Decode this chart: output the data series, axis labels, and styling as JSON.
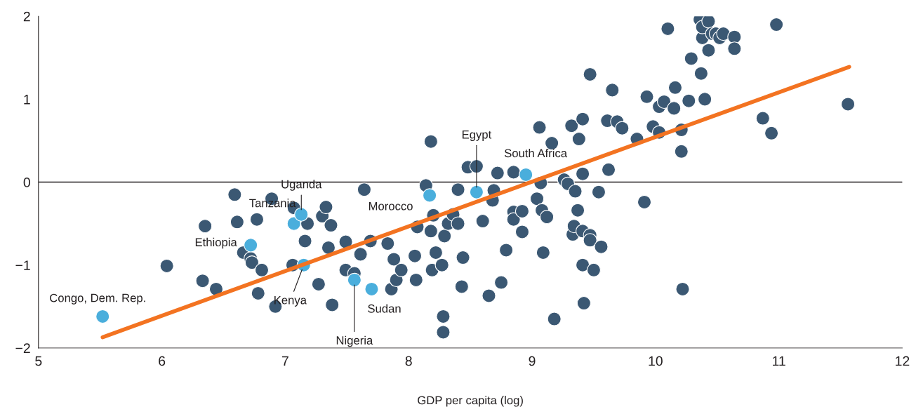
{
  "chart_data": {
    "type": "scatter",
    "xlabel": "GDP per capita (log)",
    "xlim": [
      5,
      12
    ],
    "xticks": [
      5,
      6,
      7,
      8,
      9,
      10,
      11,
      12
    ],
    "ylim": [
      -2,
      2
    ],
    "yticks": [
      {
        "value": -2,
        "label": "−2"
      },
      {
        "value": -1,
        "label": "−1"
      },
      0,
      1,
      2
    ],
    "grid": false,
    "marker": "circle",
    "ref_lines": [
      {
        "axis": "y",
        "value": 0,
        "color": "#231f20"
      }
    ],
    "series": [
      {
        "color": "#3b5873",
        "x": [
          6.04,
          6.33,
          6.35,
          6.44,
          6.59,
          6.61,
          6.66,
          6.72,
          6.73,
          6.77,
          6.78,
          6.81,
          6.89,
          6.92,
          7.06,
          7.07,
          7.16,
          7.18,
          7.27,
          7.3,
          7.33,
          7.35,
          7.37,
          7.38,
          7.49,
          7.49,
          7.56,
          7.61,
          7.64,
          7.69,
          7.83,
          7.86,
          7.88,
          7.9,
          7.94,
          8.05,
          8.06,
          8.07,
          8.14,
          8.18,
          8.18,
          8.19,
          8.2,
          8.22,
          8.27,
          8.28,
          8.28,
          8.29,
          8.32,
          8.36,
          8.4,
          8.4,
          8.43,
          8.44,
          8.48,
          8.55,
          8.6,
          8.65,
          8.68,
          8.69,
          8.72,
          8.75,
          8.79,
          8.85,
          8.85,
          8.85,
          8.92,
          8.92,
          9.04,
          9.06,
          9.07,
          9.08,
          9.09,
          9.12,
          9.16,
          9.18,
          9.26,
          9.29,
          9.32,
          9.33,
          9.34,
          9.35,
          9.37,
          9.38,
          9.41,
          9.41,
          9.41,
          9.41,
          9.42,
          9.47,
          9.47,
          9.47,
          9.5,
          9.54,
          9.56,
          9.61,
          9.62,
          9.65,
          9.69,
          9.73,
          9.85,
          9.91,
          9.93,
          9.98,
          10.03,
          10.03,
          10.07,
          10.1,
          10.15,
          10.16,
          10.21,
          10.21,
          10.22,
          10.27,
          10.29,
          10.36,
          10.37,
          10.38,
          10.38,
          10.4,
          10.43,
          10.43,
          10.46,
          10.49,
          10.52,
          10.55,
          10.64,
          10.64,
          10.87,
          10.94,
          10.98,
          11.56
        ],
        "values": [
          -1.01,
          -1.19,
          -0.53,
          -1.29,
          -0.15,
          -0.48,
          -0.85,
          -0.92,
          -0.97,
          -0.45,
          -1.34,
          -1.06,
          -0.2,
          -1.5,
          -1.0,
          -0.31,
          -0.71,
          -0.5,
          -1.23,
          -0.41,
          -0.3,
          -0.79,
          -0.52,
          -1.48,
          -0.72,
          -1.06,
          -1.1,
          -0.87,
          -0.09,
          -0.71,
          -0.74,
          -1.29,
          -0.93,
          -1.18,
          -1.06,
          -0.89,
          -1.18,
          -0.54,
          -0.04,
          -0.59,
          0.49,
          -1.06,
          -0.4,
          -0.85,
          -1.0,
          -1.62,
          -1.81,
          -0.65,
          -0.5,
          -0.39,
          -0.5,
          -0.09,
          -1.26,
          -0.91,
          0.18,
          0.19,
          -0.47,
          -1.37,
          -0.22,
          -0.1,
          0.11,
          -1.21,
          -0.82,
          -0.36,
          -0.45,
          0.12,
          -0.35,
          -0.6,
          -0.2,
          0.66,
          -0.01,
          -0.34,
          -0.85,
          -0.42,
          0.47,
          -1.65,
          0.03,
          -0.02,
          0.68,
          -0.63,
          -0.53,
          -0.11,
          -0.34,
          0.52,
          0.76,
          0.1,
          -0.59,
          -1.0,
          -1.46,
          1.3,
          -0.64,
          -0.7,
          -1.06,
          -0.12,
          -0.78,
          0.74,
          0.15,
          1.11,
          0.73,
          0.65,
          0.52,
          -0.24,
          1.03,
          0.67,
          0.91,
          0.6,
          0.97,
          1.85,
          0.89,
          1.14,
          0.63,
          0.37,
          -1.29,
          0.98,
          1.49,
          1.96,
          1.31,
          1.74,
          1.87,
          1.0,
          1.94,
          1.59,
          1.79,
          1.79,
          1.74,
          1.79,
          1.75,
          1.61,
          0.77,
          0.59,
          1.9,
          0.94
        ]
      },
      {
        "color": "#4aaedc",
        "x": [
          5.52,
          6.72,
          7.07,
          7.13,
          7.15,
          7.56,
          7.7,
          8.17,
          8.55,
          8.95
        ],
        "values": [
          -1.62,
          -0.76,
          -0.5,
          -0.39,
          -1.0,
          -1.18,
          -1.29,
          -0.16,
          -0.12,
          0.09
        ]
      },
      {
        "type": "line",
        "color": "#f37321",
        "marker": "none",
        "line_style": "solid",
        "x": [
          5.52,
          11.57
        ],
        "values": [
          -1.87,
          1.39
        ]
      }
    ],
    "annotations": [
      {
        "text": "Congo, Dem. Rep.",
        "x": 5.52,
        "y": -1.62
      },
      {
        "text": "Ethiopia",
        "x": 6.72,
        "y": -0.76
      },
      {
        "text": "Tanzania",
        "x": 7.07,
        "y": -0.5
      },
      {
        "text": "Uganda",
        "x": 7.13,
        "y": -0.39
      },
      {
        "text": "Kenya",
        "x": 7.15,
        "y": -1.0
      },
      {
        "text": "Nigeria",
        "x": 7.56,
        "y": -1.18
      },
      {
        "text": "Sudan",
        "x": 7.7,
        "y": -1.29
      },
      {
        "text": "Morocco",
        "x": 8.17,
        "y": -0.16
      },
      {
        "text": "Egypt",
        "x": 8.55,
        "y": -0.12
      },
      {
        "text": "South Africa",
        "x": 8.95,
        "y": 0.09
      }
    ]
  }
}
